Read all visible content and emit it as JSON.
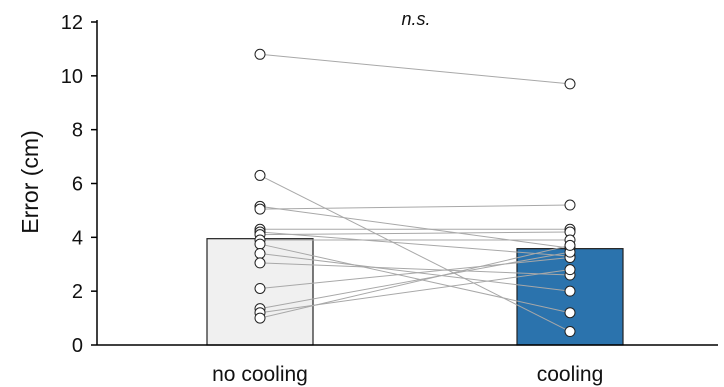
{
  "chart_data": {
    "type": "bar",
    "categories": [
      "no cooling",
      "cooling"
    ],
    "values": [
      3.95,
      3.58
    ],
    "colors": [
      "#f0f0f0",
      "#2b73ad"
    ],
    "ylabel": "Error (cm)",
    "xlabel": "",
    "ylim": [
      0,
      12
    ],
    "yticks": [
      0,
      2,
      4,
      6,
      8,
      10,
      12
    ],
    "annotation": "n.s.",
    "grid": false,
    "paired_points": [
      [
        10.8,
        9.7
      ],
      [
        6.3,
        0.5
      ],
      [
        5.15,
        3.6
      ],
      [
        5.05,
        5.2
      ],
      [
        4.3,
        4.3
      ],
      [
        4.2,
        3.3
      ],
      [
        4.1,
        4.2
      ],
      [
        3.9,
        3.9
      ],
      [
        3.75,
        1.2
      ],
      [
        3.4,
        2.0
      ],
      [
        3.05,
        2.6
      ],
      [
        2.1,
        3.25
      ],
      [
        1.35,
        3.45
      ],
      [
        1.2,
        2.8
      ],
      [
        1.0,
        3.7
      ]
    ]
  }
}
